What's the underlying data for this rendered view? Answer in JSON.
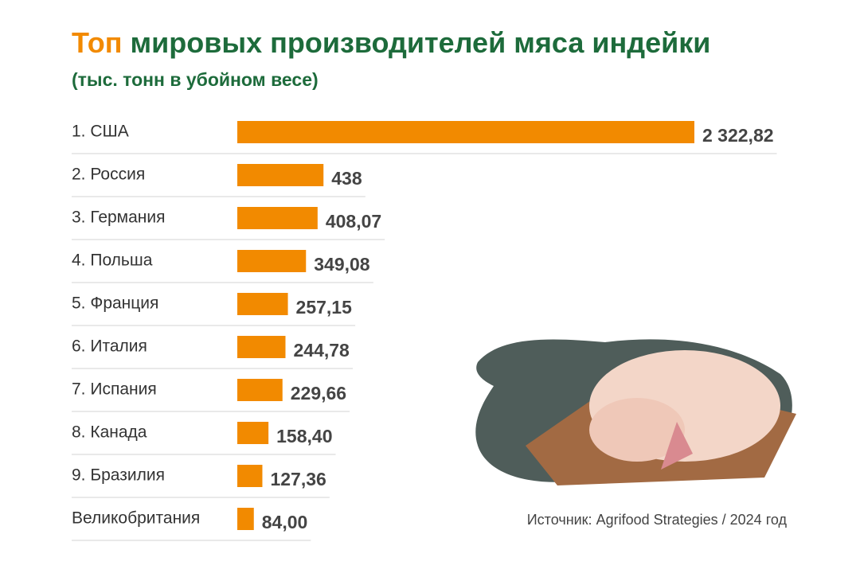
{
  "chart_data": {
    "type": "bar",
    "orientation": "horizontal",
    "title_accent": "Топ",
    "title": "мировых производителей мяса индейки",
    "subtitle": "(тыс. тонн в убойном весе)",
    "categories": [
      "1. США",
      "2. Россия",
      "3. Германия",
      "4. Польша",
      "5. Франция",
      "6. Италия",
      "7. Испания",
      "8. Канада",
      "9. Бразилия",
      "Великобритания"
    ],
    "values": [
      2322.82,
      438,
      408.07,
      349.08,
      257.15,
      244.78,
      229.66,
      158.4,
      127.36,
      84.0
    ],
    "value_labels": [
      "2 322,82",
      "438",
      "408,07",
      "349,08",
      "257,15",
      "244,78",
      "229,66",
      "158,40",
      "127,36",
      "84,00"
    ],
    "color": "#f28a00",
    "source": "Источник: Agrifood Strategies / 2024 год"
  }
}
